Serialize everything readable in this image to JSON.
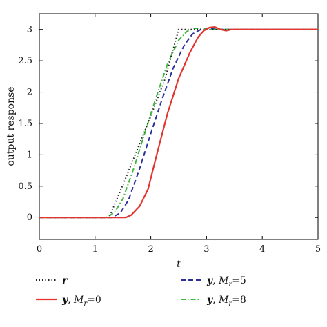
{
  "chart_data": {
    "type": "line",
    "xlabel": "t",
    "ylabel": "output response",
    "xlim": [
      0,
      5
    ],
    "ylim": [
      -0.35,
      3.25
    ],
    "xticks": [
      "0",
      "1",
      "2",
      "3",
      "4",
      "5"
    ],
    "yticks": [
      "0",
      "0.5",
      "1",
      "1.5",
      "2",
      "2.5",
      "3"
    ],
    "grid": false,
    "legend_position": "bottom, outside plot, two columns",
    "series": [
      {
        "name": "r",
        "legend_main": "r",
        "legend_sub": "",
        "legend_eq": "",
        "color": "#222222",
        "style": "dotted",
        "x": [
          0,
          1.25,
          1.5,
          1.75,
          2.0,
          2.25,
          2.5,
          5
        ],
        "y": [
          0,
          0,
          0.52,
          1.07,
          1.62,
          2.2,
          3.0,
          3.0
        ]
      },
      {
        "name": "y, M_r=0",
        "legend_main": "y",
        "legend_sub": "r",
        "legend_eq": "=0",
        "color": "#e3342f",
        "style": "solid",
        "x": [
          0,
          1.55,
          1.65,
          1.8,
          1.95,
          2.1,
          2.3,
          2.5,
          2.7,
          2.85,
          2.95,
          3.05,
          3.15,
          3.25,
          3.35,
          3.45,
          3.55,
          5
        ],
        "y": [
          0,
          0,
          0.04,
          0.18,
          0.45,
          0.98,
          1.66,
          2.22,
          2.63,
          2.88,
          2.98,
          3.03,
          3.04,
          3.0,
          2.98,
          3.0,
          3.0,
          3.0
        ]
      },
      {
        "name": "y, M_r=5",
        "legend_main": "y",
        "legend_sub": "r",
        "legend_eq": "=5",
        "color": "#2b2f9e",
        "style": "dashed",
        "x": [
          0,
          1.3,
          1.45,
          1.6,
          1.8,
          2.0,
          2.2,
          2.4,
          2.6,
          2.75,
          2.9,
          3.0,
          3.2,
          5
        ],
        "y": [
          0,
          0,
          0.07,
          0.28,
          0.78,
          1.34,
          1.88,
          2.38,
          2.75,
          2.93,
          3.0,
          3.02,
          3.0,
          3.0
        ]
      },
      {
        "name": "y, M_r=8",
        "legend_main": "y",
        "legend_sub": "r",
        "legend_eq": "=8",
        "color": "#3fb83f",
        "style": "dashdot",
        "x": [
          0,
          1.2,
          1.35,
          1.5,
          1.7,
          1.9,
          2.1,
          2.3,
          2.5,
          2.65,
          2.8,
          2.9,
          3.1,
          5
        ],
        "y": [
          0,
          0,
          0.08,
          0.3,
          0.8,
          1.37,
          1.93,
          2.45,
          2.83,
          2.97,
          3.02,
          3.01,
          3.0,
          3.0
        ]
      }
    ]
  }
}
